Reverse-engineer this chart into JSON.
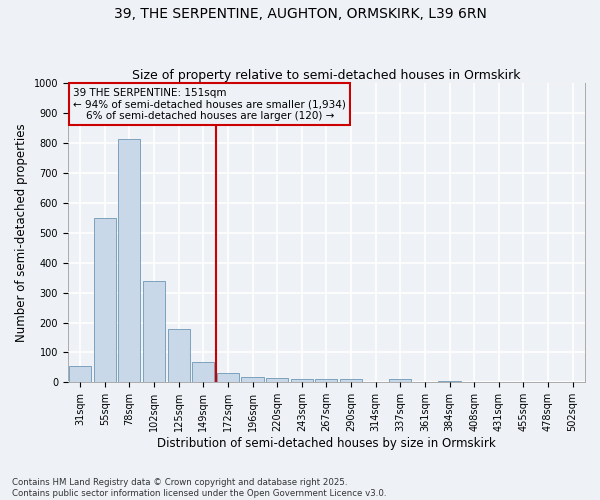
{
  "title1": "39, THE SERPENTINE, AUGHTON, ORMSKIRK, L39 6RN",
  "title2": "Size of property relative to semi-detached houses in Ormskirk",
  "xlabel": "Distribution of semi-detached houses by size in Ormskirk",
  "ylabel": "Number of semi-detached properties",
  "categories": [
    "31sqm",
    "55sqm",
    "78sqm",
    "102sqm",
    "125sqm",
    "149sqm",
    "172sqm",
    "196sqm",
    "220sqm",
    "243sqm",
    "267sqm",
    "290sqm",
    "314sqm",
    "337sqm",
    "361sqm",
    "384sqm",
    "408sqm",
    "431sqm",
    "455sqm",
    "478sqm",
    "502sqm"
  ],
  "values": [
    55,
    550,
    815,
    340,
    178,
    67,
    32,
    18,
    15,
    12,
    12,
    10,
    0,
    10,
    0,
    5,
    0,
    0,
    0,
    0,
    0
  ],
  "bar_color": "#c8d8e8",
  "bar_edge_color": "#5588aa",
  "vline_x_index": 5,
  "vline_color": "#cc0000",
  "annotation_line1": "39 THE SERPENTINE: 151sqm",
  "annotation_line2": "← 94% of semi-detached houses are smaller (1,934)",
  "annotation_line3": "    6% of semi-detached houses are larger (120) →",
  "annotation_box_color": "#cc0000",
  "ylim": [
    0,
    1000
  ],
  "yticks": [
    0,
    100,
    200,
    300,
    400,
    500,
    600,
    700,
    800,
    900,
    1000
  ],
  "footer_text": "Contains HM Land Registry data © Crown copyright and database right 2025.\nContains public sector information licensed under the Open Government Licence v3.0.",
  "background_color": "#eef2f7",
  "grid_color": "#ffffff",
  "title_fontsize": 10,
  "subtitle_fontsize": 9,
  "tick_fontsize": 7,
  "label_fontsize": 8.5,
  "annot_fontsize": 7.5
}
